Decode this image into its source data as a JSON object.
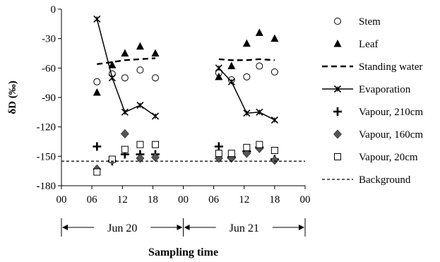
{
  "chart_data": {
    "type": "scatter",
    "ylabel": "δD (‰)",
    "xlabel": "Sampling time",
    "ylim": [
      -180,
      0
    ],
    "yticks": [
      0,
      -30,
      -60,
      -90,
      -120,
      -150,
      -180
    ],
    "xlim": [
      0,
      48
    ],
    "xticks": [
      0,
      6,
      12,
      18,
      24,
      30,
      36,
      42,
      48
    ],
    "xtick_labels": [
      "00",
      "06",
      "12",
      "18",
      "00",
      "06",
      "12",
      "18",
      "00"
    ],
    "periods": [
      {
        "label": "Jun 20",
        "start": 0,
        "end": 24
      },
      {
        "label": "Jun 21",
        "start": 24,
        "end": 48
      }
    ],
    "legend_position": "right",
    "series": [
      {
        "name": "Stem",
        "kind": "marker",
        "marker": "circle-open",
        "x": [
          7,
          10,
          12.5,
          15.5,
          18.5,
          31,
          33.5,
          36.5,
          39,
          42
        ],
        "y": [
          -74,
          -66,
          -70,
          -62,
          -70,
          -65,
          -72,
          -69,
          -58,
          -64
        ]
      },
      {
        "name": "Leaf",
        "kind": "marker",
        "marker": "triangle-filled",
        "x": [
          7,
          10,
          12.5,
          15.5,
          18.5,
          31,
          33.5,
          36.5,
          39,
          42
        ],
        "y": [
          -85,
          -57,
          -45,
          -38,
          -45,
          -69,
          -58,
          -35,
          -24,
          -30
        ]
      },
      {
        "name": "Standing water",
        "kind": "line",
        "style": "thick-dashed",
        "x": [
          7,
          10,
          12.5,
          15.5,
          18.5,
          31,
          33.5,
          36.5,
          39,
          42
        ],
        "y": [
          -56,
          -54,
          -52,
          -51,
          -50,
          -51,
          -52,
          -52,
          -51,
          -52
        ]
      },
      {
        "name": "Evaporation",
        "kind": "line-marker",
        "marker": "asterisk",
        "x": [
          7,
          10,
          12.5,
          15.5,
          18.5,
          31,
          33.5,
          36.5,
          39,
          42
        ],
        "y": [
          -10,
          -70,
          -105,
          -98,
          -109,
          -60,
          -74,
          -106,
          -105,
          -113
        ]
      },
      {
        "name": "Vapour, 210cm",
        "kind": "marker",
        "marker": "plus",
        "x": [
          7,
          10,
          12.5,
          15.5,
          18.5,
          31,
          33.5,
          36.5,
          39,
          42
        ],
        "y": [
          -140,
          -155,
          -148,
          -148,
          -148,
          -140,
          -151,
          -145,
          -141,
          -153
        ]
      },
      {
        "name": "Vapour, 160cm",
        "kind": "marker",
        "marker": "diamond-filled",
        "x": [
          7,
          10,
          12.5,
          15.5,
          18.5,
          31,
          33.5,
          36.5,
          39,
          42
        ],
        "y": [
          -163,
          -154,
          -127,
          -152,
          -151,
          -152,
          -152,
          -147,
          -142,
          -154
        ]
      },
      {
        "name": "Vapour, 20cm",
        "kind": "marker",
        "marker": "square-open",
        "x": [
          7,
          10,
          12.5,
          15.5,
          18.5,
          31,
          33.5,
          36.5,
          39,
          42
        ],
        "y": [
          -166,
          -153,
          -143,
          -138,
          -138,
          -147,
          -147,
          -141,
          -138,
          -144
        ]
      },
      {
        "name": "Background",
        "kind": "line",
        "style": "thin-dashed",
        "x": [
          0,
          48
        ],
        "y": [
          -155,
          -155
        ]
      }
    ],
    "colors": {
      "axis": "#000000",
      "marker_fill": "#000000",
      "diamond_fill": "#555555"
    }
  }
}
